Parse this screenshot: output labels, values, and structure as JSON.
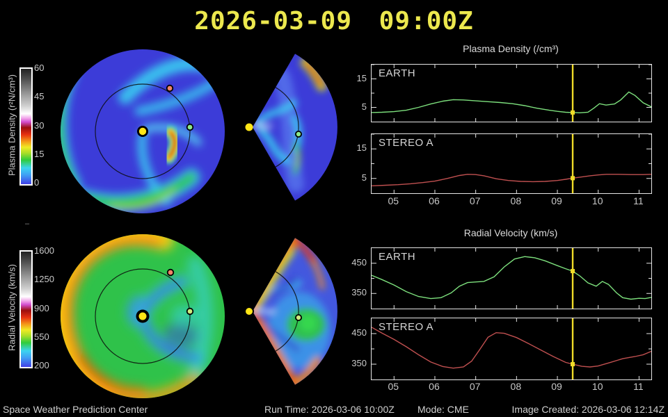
{
  "title": "2026-03-09 09:00Z",
  "colors": {
    "accent_yellow": "#ece84e",
    "earth_line": "#7de07d",
    "stereo_line": "#c05050",
    "time_marker": "#f0dc28",
    "axis": "#e6e6e6",
    "label_gray": "#c9c9c9"
  },
  "colorbars": [
    {
      "label": "Plasma Density (r²N/cm³)",
      "ticks": [
        "60",
        "45",
        "30",
        "15",
        "0"
      ]
    },
    {
      "label": "Radial Velocity (km/s)",
      "ticks": [
        "1600",
        "1250",
        "900",
        "550",
        "200"
      ]
    }
  ],
  "stray_dash": "–",
  "footer": {
    "left": "Space Weather Prediction Center",
    "run_time": "Run Time: 2026-03-06 10:00Z",
    "mode": "Mode: CME",
    "image_created": "Image Created: 2026-03-06 12:14Z"
  },
  "chart_data": [
    {
      "type": "line",
      "group_title": "Plasma Density (/cm³)",
      "station": "EARTH",
      "color": "#7de07d",
      "xlim": [
        4.45,
        11.3
      ],
      "ylim": [
        0,
        20
      ],
      "xticks": [
        5,
        6,
        7,
        8,
        9,
        10,
        11
      ],
      "xtick_labels": [
        "05",
        "06",
        "07",
        "08",
        "09",
        "10",
        "11"
      ],
      "yticks": [
        5,
        15
      ],
      "yticks_minor": [
        10,
        20
      ],
      "marker_x": 9.375,
      "x": [
        4.45,
        4.7,
        5.0,
        5.3,
        5.6,
        5.9,
        6.2,
        6.45,
        6.7,
        7.0,
        7.3,
        7.6,
        7.9,
        8.2,
        8.5,
        8.8,
        9.0,
        9.2,
        9.375,
        9.55,
        9.75,
        9.9,
        10.03,
        10.19,
        10.4,
        10.55,
        10.75,
        10.9,
        11.1,
        11.3
      ],
      "y": [
        3.2,
        3.3,
        3.5,
        4.0,
        5.0,
        6.2,
        7.2,
        7.7,
        7.6,
        7.3,
        7.0,
        6.7,
        6.3,
        5.6,
        4.7,
        4.0,
        3.6,
        3.3,
        3.2,
        3.1,
        3.3,
        4.8,
        6.3,
        5.8,
        6.2,
        7.6,
        10.4,
        9.2,
        6.6,
        5.2
      ]
    },
    {
      "type": "line",
      "station": "STEREO A",
      "color": "#c05050",
      "xlim": [
        4.45,
        11.3
      ],
      "ylim": [
        0,
        20
      ],
      "xticks": [
        5,
        6,
        7,
        8,
        9,
        10,
        11
      ],
      "xtick_labels": [
        "05",
        "06",
        "07",
        "08",
        "09",
        "10",
        "11"
      ],
      "yticks": [
        5,
        15
      ],
      "yticks_minor": [
        10,
        20
      ],
      "marker_x": 9.375,
      "x": [
        4.45,
        4.8,
        5.1,
        5.4,
        5.7,
        6.0,
        6.3,
        6.6,
        6.8,
        7.0,
        7.2,
        7.5,
        7.8,
        8.1,
        8.4,
        8.7,
        9.0,
        9.2,
        9.375,
        9.6,
        9.8,
        10.0,
        10.2,
        10.5,
        10.8,
        11.1,
        11.3
      ],
      "y": [
        2.5,
        2.7,
        2.9,
        3.2,
        3.6,
        4.1,
        5.0,
        6.0,
        6.4,
        6.3,
        5.9,
        4.9,
        4.3,
        4.0,
        3.9,
        4.0,
        4.3,
        4.7,
        5.1,
        5.5,
        5.9,
        6.2,
        6.4,
        6.4,
        6.3,
        6.3,
        6.4
      ]
    },
    {
      "type": "line",
      "group_title": "Radial Velocity (km/s)",
      "station": "EARTH",
      "color": "#7de07d",
      "xlim": [
        4.45,
        11.3
      ],
      "ylim": [
        300,
        500
      ],
      "xticks": [
        5,
        6,
        7,
        8,
        9,
        10,
        11
      ],
      "xtick_labels": [
        "05",
        "06",
        "07",
        "08",
        "09",
        "10",
        "11"
      ],
      "yticks": [
        350,
        450
      ],
      "yticks_minor": [
        400
      ],
      "marker_x": 9.375,
      "x": [
        4.45,
        4.7,
        5.0,
        5.3,
        5.6,
        5.9,
        6.15,
        6.4,
        6.6,
        6.8,
        7.0,
        7.2,
        7.45,
        7.7,
        7.95,
        8.2,
        8.45,
        8.7,
        9.0,
        9.2,
        9.375,
        9.55,
        9.75,
        9.95,
        10.1,
        10.25,
        10.45,
        10.6,
        10.8,
        11.0,
        11.15,
        11.3
      ],
      "y": [
        410,
        396,
        378,
        356,
        340,
        333,
        336,
        352,
        374,
        386,
        388,
        390,
        405,
        438,
        464,
        472,
        468,
        458,
        442,
        432,
        424,
        408,
        385,
        374,
        390,
        380,
        352,
        336,
        331,
        334,
        333,
        337
      ]
    },
    {
      "type": "line",
      "station": "STEREO A",
      "color": "#c05050",
      "xlim": [
        4.45,
        11.3
      ],
      "ylim": [
        300,
        500
      ],
      "xticks": [
        5,
        6,
        7,
        8,
        9,
        10,
        11
      ],
      "xtick_labels": [
        "05",
        "06",
        "07",
        "08",
        "09",
        "10",
        "11"
      ],
      "yticks": [
        350,
        450
      ],
      "yticks_minor": [
        400
      ],
      "marker_x": 9.375,
      "x": [
        4.45,
        4.7,
        5.0,
        5.3,
        5.6,
        5.9,
        6.2,
        6.45,
        6.7,
        6.9,
        7.1,
        7.3,
        7.5,
        7.7,
        8.0,
        8.3,
        8.6,
        8.9,
        9.2,
        9.375,
        9.6,
        9.8,
        10.0,
        10.3,
        10.6,
        10.9,
        11.1,
        11.3
      ],
      "y": [
        471,
        452,
        431,
        407,
        381,
        357,
        342,
        337,
        341,
        360,
        398,
        438,
        453,
        451,
        437,
        417,
        396,
        375,
        356,
        350,
        343,
        341,
        344,
        356,
        368,
        375,
        381,
        392
      ]
    }
  ]
}
